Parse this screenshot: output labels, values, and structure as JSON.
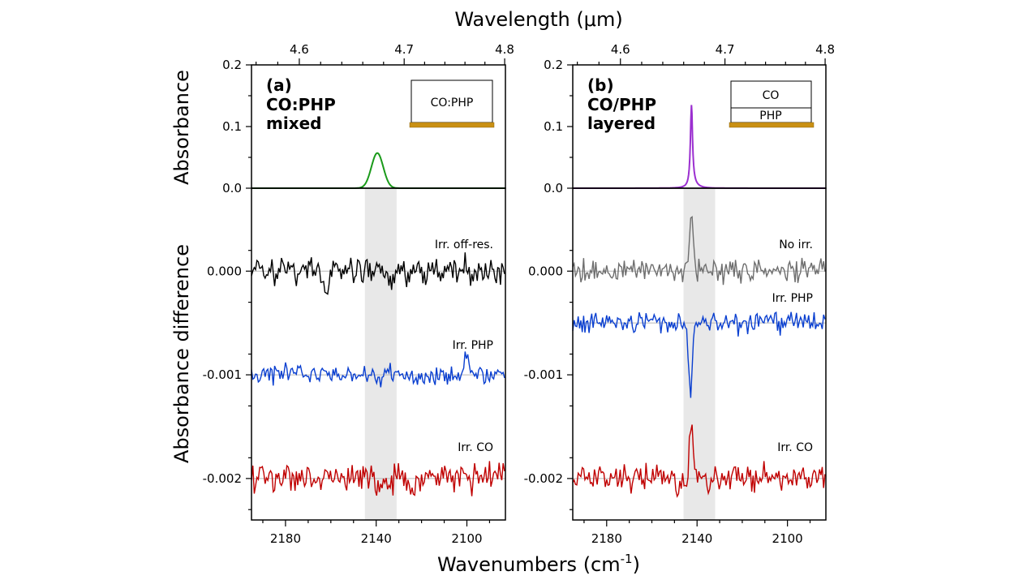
{
  "chart_data": {
    "type": "line",
    "top_axis_label": "Wavelength (μm)",
    "bottom_axis_label": "Wavenumbers (cm",
    "bottom_axis_unit_sup": "-1",
    "bottom_axis_label_close": ")",
    "top_ylabel": "Absorbance",
    "bottom_ylabel": "Absorbance difference",
    "x_range_wavenumber": [
      2195,
      2083
    ],
    "x_ticks": [
      "2180",
      "2140",
      "2100"
    ],
    "x_tick_values": [
      2180,
      2140,
      2100
    ],
    "wavelength_ticks": [
      "4.6",
      "4.7",
      "4.8"
    ],
    "wavelength_tick_values": [
      4.6,
      4.7,
      4.8
    ],
    "top_ylim": [
      0,
      0.2
    ],
    "top_yticks": [
      "0.0",
      "0.1",
      "0.2"
    ],
    "top_ytick_values": [
      0.0,
      0.1,
      0.2
    ],
    "bottom_ylim": [
      -0.0024,
      0.0008
    ],
    "bottom_yticks": [
      "0.000",
      "-0.001",
      "-0.002"
    ],
    "bottom_ytick_values": [
      0.0,
      -0.001,
      -0.002
    ],
    "panels": [
      {
        "label": "(a)",
        "title_line1": "CO:PHP",
        "title_line2": "mixed",
        "inset_layers": [
          "CO:PHP"
        ],
        "shaded_band": [
          2145,
          2131
        ],
        "absorbance": {
          "name": "CO:PHP mixed",
          "color": "#1a9a1a",
          "center": 2139.5,
          "height": 0.057,
          "width": 2.6
        },
        "difference_series": [
          {
            "name": "Irr. off-res.",
            "color": "#000000",
            "offset": 0.0,
            "noise": 9e-05,
            "features": [
              {
                "x": 2162,
                "a": -0.00025
              },
              {
                "x": 2133,
                "a": -0.0002
              }
            ]
          },
          {
            "name": "Irr. PHP",
            "color": "#0a3fd0",
            "offset": -0.001,
            "noise": 6e-05,
            "features": [
              {
                "x": 2139.5,
                "a": -0.0001
              },
              {
                "x": 2100,
                "a": 0.0002
              }
            ]
          },
          {
            "name": "Irr. CO",
            "color": "#c00000",
            "offset": -0.002,
            "noise": 9e-05,
            "features": []
          }
        ]
      },
      {
        "label": "(b)",
        "title_line1": "CO/PHP",
        "title_line2": "layered",
        "inset_layers": [
          "CO",
          "PHP"
        ],
        "shaded_band": [
          2146,
          2132
        ],
        "absorbance": {
          "name": "CO/PHP layered",
          "color": "#9b2fd0",
          "center": 2142.5,
          "height": 0.135,
          "width": 0.55
        },
        "difference_series": [
          {
            "name": "No irr.",
            "color": "#6e6e6e",
            "offset": 0.0,
            "noise": 7e-05,
            "features": [
              {
                "x": 2142.5,
                "a": 0.00055
              }
            ]
          },
          {
            "name": "Irr. PHP",
            "color": "#0a3fd0",
            "offset": -0.0005,
            "noise": 6e-05,
            "features": [
              {
                "x": 2143,
                "a": -0.00065
              }
            ]
          },
          {
            "name": "Irr. CO",
            "color": "#c00000",
            "offset": -0.002,
            "noise": 8e-05,
            "features": [
              {
                "x": 2142.5,
                "a": 0.0005
              }
            ]
          }
        ]
      }
    ]
  }
}
